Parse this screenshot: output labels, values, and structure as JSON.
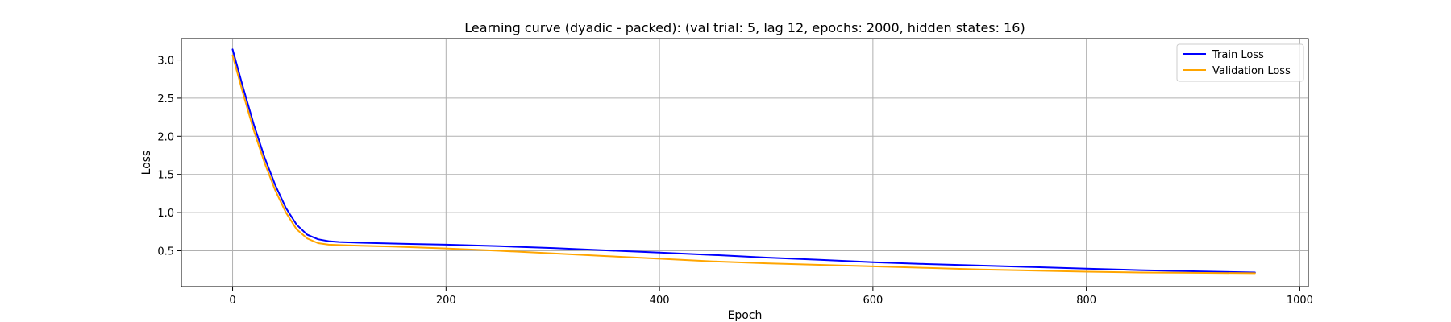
{
  "chart_data": {
    "type": "line",
    "title": "Learning curve (dyadic - packed): (val trial: 5, lag 12, epochs: 2000, hidden states: 16)",
    "xlabel": "Epoch",
    "ylabel": "Loss",
    "xlim": [
      -48,
      1008
    ],
    "ylim": [
      0.03,
      3.28
    ],
    "xticks": [
      0,
      200,
      400,
      600,
      800,
      1000
    ],
    "xtick_labels": [
      "0",
      "200",
      "400",
      "600",
      "800",
      "1000"
    ],
    "yticks": [
      0.5,
      1.0,
      1.5,
      2.0,
      2.5,
      3.0
    ],
    "ytick_labels": [
      "0.5",
      "1.0",
      "1.5",
      "2.0",
      "2.5",
      "3.0"
    ],
    "grid": true,
    "legend_position": "top-right",
    "series": [
      {
        "name": "Train Loss",
        "color": "#0000ff",
        "x": [
          0,
          10,
          20,
          30,
          40,
          50,
          60,
          70,
          80,
          90,
          100,
          120,
          150,
          200,
          250,
          300,
          350,
          400,
          450,
          500,
          550,
          600,
          650,
          700,
          750,
          800,
          850,
          900,
          958
        ],
        "values": [
          3.14,
          2.63,
          2.15,
          1.72,
          1.36,
          1.06,
          0.84,
          0.71,
          0.65,
          0.625,
          0.615,
          0.605,
          0.595,
          0.58,
          0.56,
          0.535,
          0.505,
          0.475,
          0.445,
          0.41,
          0.38,
          0.35,
          0.325,
          0.305,
          0.285,
          0.265,
          0.245,
          0.23,
          0.215
        ]
      },
      {
        "name": "Validation Loss",
        "color": "#ffa500",
        "x": [
          0,
          10,
          20,
          30,
          40,
          50,
          60,
          70,
          80,
          90,
          100,
          120,
          150,
          200,
          250,
          300,
          350,
          400,
          450,
          500,
          550,
          600,
          650,
          700,
          750,
          800,
          850,
          900,
          958
        ],
        "values": [
          3.06,
          2.55,
          2.07,
          1.65,
          1.29,
          1.0,
          0.78,
          0.66,
          0.6,
          0.58,
          0.575,
          0.565,
          0.555,
          0.53,
          0.5,
          0.465,
          0.43,
          0.395,
          0.36,
          0.335,
          0.315,
          0.295,
          0.275,
          0.255,
          0.24,
          0.225,
          0.215,
          0.21,
          0.205
        ]
      }
    ]
  }
}
